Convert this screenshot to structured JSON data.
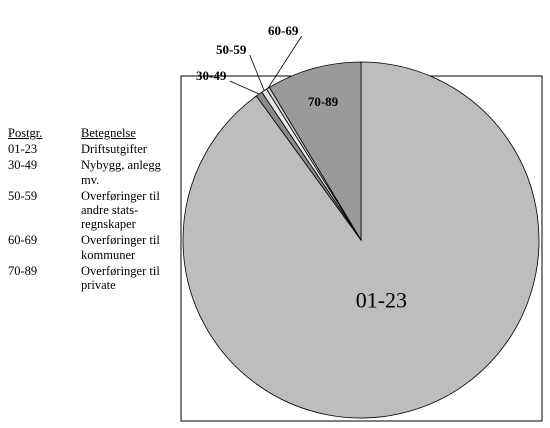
{
  "legend": {
    "header_code": "Postgr.",
    "header_desc": "Betegnelse",
    "rows": [
      {
        "code": "01-23",
        "desc": "Driftsutgifter"
      },
      {
        "code": "30-49",
        "desc": "Nybygg, anlegg mv."
      },
      {
        "code": "50-59",
        "desc": "Overføringer til andre stats-regnskaper"
      },
      {
        "code": "60-69",
        "desc": "Overføringer til kommuner"
      },
      {
        "code": "70-89",
        "desc": "Overføringer til private"
      }
    ]
  },
  "chart_data": {
    "type": "pie",
    "title": "",
    "slices": [
      {
        "label": "01-23",
        "value": 90.0,
        "color": "#bdbdbd"
      },
      {
        "label": "30-49",
        "value": 0.6,
        "color": "#8a8a8a"
      },
      {
        "label": "50-59",
        "value": 0.5,
        "color": "#e8e8e8"
      },
      {
        "label": "60-69",
        "value": 0.3,
        "color": "#d0d0d0"
      },
      {
        "label": "70-89",
        "value": 8.6,
        "color": "#9a9a9a"
      }
    ],
    "start": "12 o'clock",
    "direction": "counterclockwise from 70-89 edge",
    "legend_position": "left"
  }
}
